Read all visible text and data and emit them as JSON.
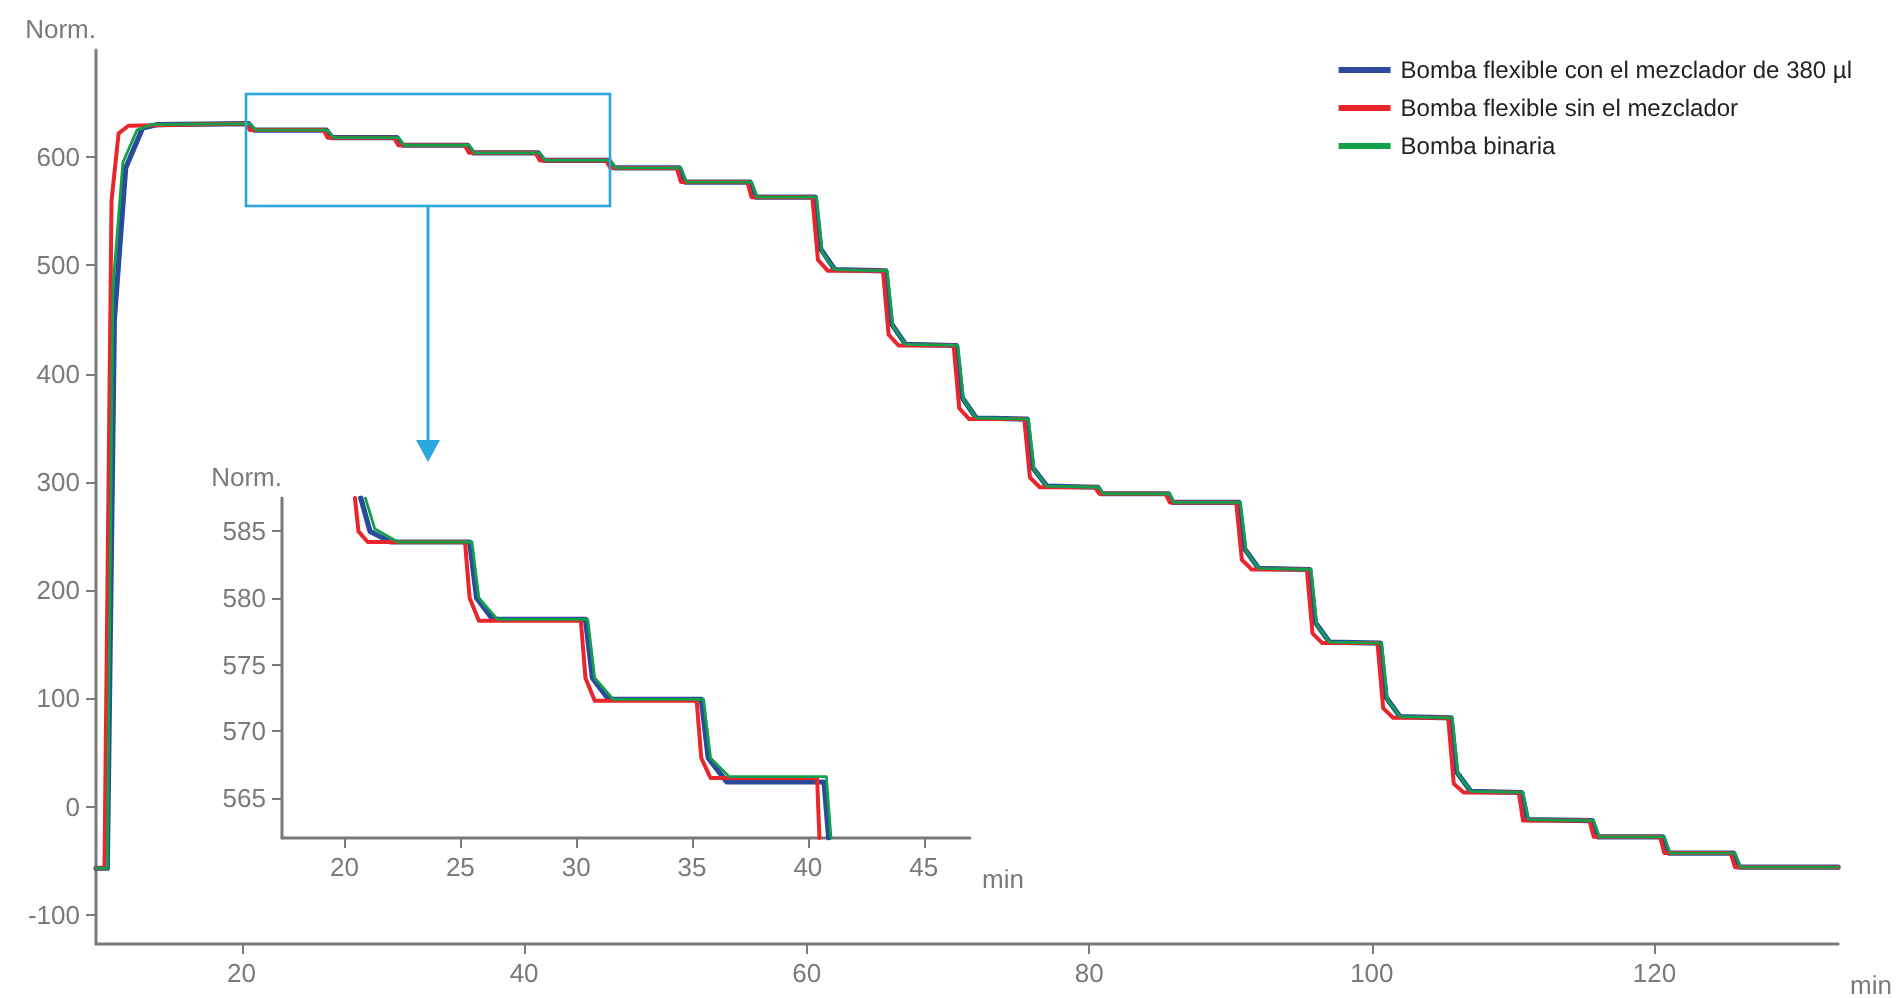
{
  "chart_data": [
    {
      "type": "line",
      "ylabel": "Norm.",
      "xlabel": "min",
      "xlim": [
        9.7,
        133
      ],
      "ylim": [
        -127,
        699
      ],
      "xticks": [
        20,
        40,
        60,
        80,
        100,
        120
      ],
      "yticks": [
        -100,
        0,
        100,
        200,
        300,
        400,
        500,
        600
      ],
      "grid": false,
      "legend": "top right",
      "marker": "none",
      "line_style": "solid",
      "series": [
        {
          "name": "Bomba flexible con el mezclador de 380 µl",
          "color": "#2a4a9a",
          "x": [
            9.7,
            10.5,
            11,
            11.8,
            13,
            14,
            20.5,
            20.9,
            26,
            26.4,
            31,
            31.4,
            36,
            36.4,
            41,
            41.4,
            46,
            46.4,
            51,
            51.4,
            56,
            56.4,
            60.6,
            61,
            62,
            65.6,
            66,
            67,
            70.6,
            71,
            72,
            75.6,
            76,
            77,
            80.6,
            80.9,
            85.6,
            85.9,
            90.6,
            91,
            92,
            95.6,
            96,
            97,
            100.6,
            101,
            102,
            105.6,
            106,
            107,
            110.6,
            111,
            115.6,
            116,
            120.6,
            121,
            125.6,
            126,
            133
          ],
          "values": [
            -57,
            -57,
            450,
            590,
            627,
            630,
            631,
            625,
            625,
            618,
            618,
            611,
            611,
            604,
            604,
            597,
            597,
            590,
            590,
            577,
            577,
            563,
            563,
            515,
            496,
            495,
            446,
            427,
            426,
            378,
            359,
            358,
            313,
            296,
            295,
            289,
            289,
            281,
            281,
            238,
            220,
            219,
            170,
            152,
            151,
            101,
            83,
            82,
            32,
            14,
            13,
            -12,
            -13,
            -28,
            -28,
            -43,
            -43,
            -56,
            -56
          ]
        },
        {
          "name": "Bomba flexible sin el mezclador",
          "color": "#e8262b",
          "x": [
            9.7,
            10.3,
            10.8,
            11.3,
            12,
            20.3,
            20.6,
            25.8,
            26.1,
            30.8,
            31.1,
            35.8,
            36.1,
            40.8,
            41.1,
            45.8,
            46.1,
            50.8,
            51.1,
            55.8,
            56.1,
            60.4,
            60.8,
            61.5,
            65.4,
            65.8,
            66.5,
            70.4,
            70.8,
            71.5,
            75.4,
            75.8,
            76.5,
            80.4,
            80.7,
            85.4,
            85.7,
            90.4,
            90.8,
            91.5,
            95.4,
            95.8,
            96.5,
            100.4,
            100.8,
            101.5,
            105.4,
            105.8,
            106.5,
            110.4,
            110.7,
            115.4,
            115.7,
            120.4,
            120.7,
            125.4,
            125.7,
            133
          ],
          "values": [
            -57,
            -57,
            560,
            622,
            629,
            631,
            625,
            625,
            618,
            618,
            611,
            611,
            604,
            604,
            597,
            597,
            590,
            590,
            577,
            577,
            563,
            563,
            505,
            495,
            495,
            436,
            426,
            426,
            368,
            358,
            358,
            304,
            295,
            295,
            289,
            289,
            281,
            281,
            228,
            219,
            219,
            160,
            151,
            151,
            91,
            82,
            82,
            21,
            13,
            13,
            -13,
            -13,
            -28,
            -28,
            -43,
            -43,
            -56,
            -56
          ]
        },
        {
          "name": "Bomba binaria",
          "color": "#13a04a",
          "x": [
            9.7,
            10.5,
            10.9,
            11.6,
            12.6,
            13.6,
            20.6,
            21,
            26.1,
            26.5,
            31.1,
            31.5,
            36.1,
            36.5,
            41.1,
            41.5,
            46.1,
            46.5,
            51.1,
            51.5,
            56.1,
            56.5,
            60.7,
            61.1,
            62,
            65.7,
            66.1,
            67,
            70.7,
            71.1,
            72,
            75.7,
            76.1,
            77,
            80.7,
            81,
            85.7,
            86,
            90.7,
            91.1,
            92,
            95.7,
            96.1,
            97,
            100.7,
            101.1,
            102,
            105.7,
            106.1,
            107,
            110.7,
            111.1,
            115.7,
            116.1,
            120.7,
            121.1,
            125.7,
            126.1,
            133
          ],
          "values": [
            -57,
            -57,
            480,
            595,
            625,
            630,
            631,
            625,
            625,
            618,
            618,
            611,
            611,
            604,
            604,
            597,
            597,
            590,
            590,
            577,
            577,
            563,
            563,
            512,
            496,
            495,
            444,
            427,
            426,
            376,
            359,
            358,
            311,
            296,
            295,
            289,
            289,
            281,
            281,
            236,
            220,
            219,
            168,
            152,
            151,
            99,
            83,
            82,
            30,
            14,
            13,
            -12,
            -13,
            -28,
            -28,
            -43,
            -43,
            -56,
            -56
          ]
        }
      ]
    },
    {
      "type": "line",
      "ylabel": "Norm.",
      "xlabel": "min",
      "xlim": [
        17.3,
        47
      ],
      "ylim": [
        562,
        587.5
      ],
      "xticks": [
        20,
        25,
        30,
        35,
        40,
        45
      ],
      "yticks": [
        565,
        570,
        575,
        580,
        585
      ],
      "grid": false,
      "legend": false,
      "marker": "none",
      "line_style": "solid",
      "series": [
        {
          "color": "#2a4a9a",
          "x": [
            20.7,
            21.1,
            22,
            25.4,
            25.7,
            26.4,
            30.4,
            30.7,
            31.4,
            35.4,
            35.7,
            36.5,
            40.7,
            40.9
          ],
          "values": [
            587.5,
            585,
            584.2,
            584.2,
            580,
            578.4,
            578.4,
            574,
            572.4,
            572.4,
            568,
            566.2,
            566.2,
            562
          ]
        },
        {
          "color": "#e8262b",
          "x": [
            20.45,
            20.6,
            21,
            25.2,
            25.4,
            25.8,
            30.2,
            30.4,
            30.8,
            35.2,
            35.4,
            35.8,
            40.4,
            40.5
          ],
          "values": [
            587.5,
            585,
            584.2,
            584.2,
            580,
            578.3,
            578.3,
            574,
            572.3,
            572.3,
            568,
            566.5,
            566.5,
            562
          ]
        },
        {
          "color": "#13a04a",
          "x": [
            20.9,
            21.3,
            22.3,
            25.5,
            25.8,
            26.6,
            30.5,
            30.8,
            31.6,
            35.5,
            35.8,
            36.6,
            40.8,
            41
          ],
          "values": [
            587.5,
            585.2,
            584.2,
            584.2,
            580,
            578.4,
            578.4,
            574,
            572.4,
            572.4,
            568,
            566.6,
            566.6,
            562
          ]
        }
      ]
    }
  ]
}
